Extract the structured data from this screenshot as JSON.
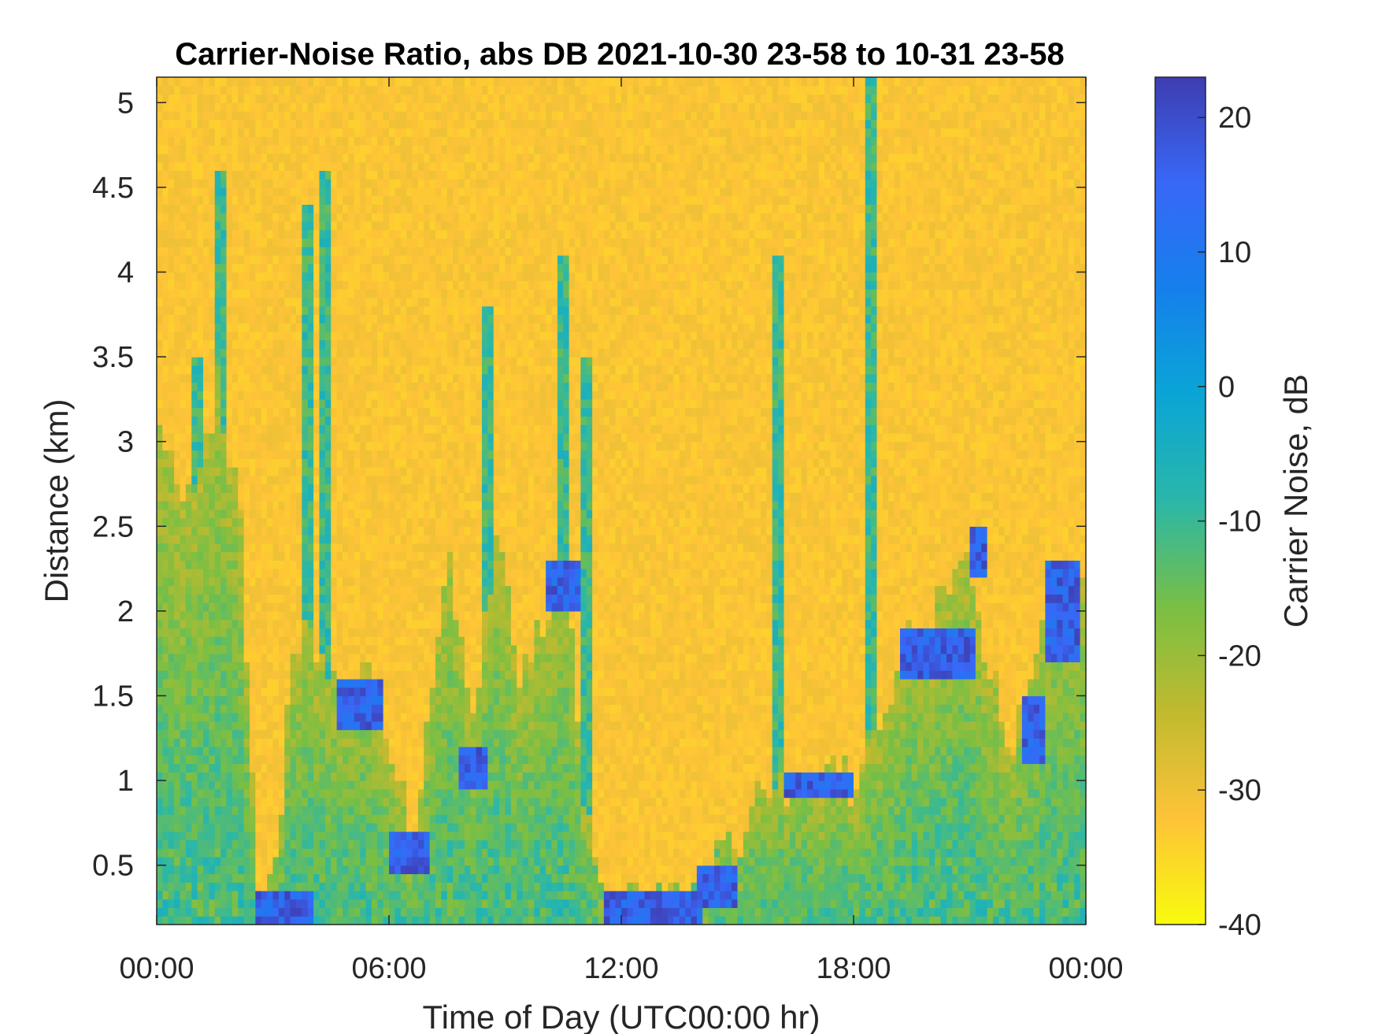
{
  "chart_data": {
    "type": "heatmap",
    "title": "Carrier-Noise Ratio, abs DB 2021-10-30 23-58 to 10-31 23-58",
    "xlabel": "Time of Day (UTC00:00 hr)",
    "ylabel": "Distance (km)",
    "colorbar_label": "Carrier Noise, dB",
    "xlim": [
      0,
      24
    ],
    "ylim": [
      0.15,
      5.15
    ],
    "clim": [
      -40,
      23
    ],
    "x_ticks": [
      0,
      6,
      12,
      18,
      24
    ],
    "x_tick_labels": [
      "00:00",
      "06:00",
      "12:00",
      "18:00",
      "00:00"
    ],
    "y_ticks": [
      0.5,
      1,
      1.5,
      2,
      2.5,
      3,
      3.5,
      4,
      4.5,
      5
    ],
    "y_tick_labels": [
      "0.5",
      "1",
      "1.5",
      "2",
      "2.5",
      "3",
      "3.5",
      "4",
      "4.5",
      "5"
    ],
    "colorbar_ticks": [
      -40,
      -30,
      -20,
      -10,
      0,
      10,
      20
    ],
    "colorbar_tick_labels": [
      "-40",
      "-30",
      "-20",
      "-10",
      "0",
      "10",
      "20"
    ],
    "colormap": [
      "#f9fb0e",
      "#fec338",
      "#c1ba2f",
      "#79bf44",
      "#2ab7a9",
      "#0aa5d6",
      "#1580ec",
      "#3868f7",
      "#3e3db0"
    ],
    "background_value_db": -32,
    "signal_layer_top_km": [
      [
        0.0,
        3.1
      ],
      [
        0.5,
        2.8
      ],
      [
        1.0,
        2.6
      ],
      [
        1.6,
        3.4
      ],
      [
        2.2,
        2.5
      ],
      [
        2.6,
        0.35
      ],
      [
        3.0,
        0.3
      ],
      [
        3.6,
        1.9
      ],
      [
        4.2,
        1.7
      ],
      [
        4.8,
        1.6
      ],
      [
        5.4,
        1.6
      ],
      [
        6.0,
        1.2
      ],
      [
        6.6,
        0.7
      ],
      [
        7.2,
        1.7
      ],
      [
        7.6,
        2.3
      ],
      [
        8.2,
        1.4
      ],
      [
        8.8,
        2.6
      ],
      [
        9.4,
        1.6
      ],
      [
        10.0,
        2.0
      ],
      [
        10.6,
        2.3
      ],
      [
        11.0,
        1.0
      ],
      [
        11.6,
        0.3
      ],
      [
        12.4,
        0.3
      ],
      [
        13.2,
        0.3
      ],
      [
        14.0,
        0.35
      ],
      [
        14.8,
        0.6
      ],
      [
        15.6,
        0.9
      ],
      [
        16.4,
        1.0
      ],
      [
        17.2,
        1.0
      ],
      [
        18.0,
        1.0
      ],
      [
        18.6,
        1.2
      ],
      [
        19.2,
        1.8
      ],
      [
        20.0,
        1.9
      ],
      [
        20.8,
        2.4
      ],
      [
        21.4,
        1.8
      ],
      [
        22.0,
        1.2
      ],
      [
        22.6,
        1.5
      ],
      [
        23.2,
        2.2
      ],
      [
        24.0,
        2.3
      ]
    ],
    "plumes": [
      {
        "x": 1.6,
        "top": 4.6
      },
      {
        "x": 3.9,
        "top": 4.4
      },
      {
        "x": 4.4,
        "top": 4.6
      },
      {
        "x": 8.5,
        "top": 3.8
      },
      {
        "x": 10.5,
        "top": 4.1
      },
      {
        "x": 11.1,
        "top": 3.5
      },
      {
        "x": 16.0,
        "top": 4.1
      },
      {
        "x": 18.4,
        "top": 5.15
      },
      {
        "x": 1.0,
        "top": 3.5
      }
    ],
    "strong_returns": [
      {
        "t0": 6.0,
        "t1": 7.0,
        "d0": 0.45,
        "d1": 0.7
      },
      {
        "t0": 11.5,
        "t1": 14.1,
        "d0": 0.15,
        "d1": 0.35
      },
      {
        "t0": 2.6,
        "t1": 4.0,
        "d0": 0.15,
        "d1": 0.35
      },
      {
        "t0": 7.8,
        "t1": 8.6,
        "d0": 0.95,
        "d1": 1.2
      },
      {
        "t0": 4.6,
        "t1": 5.8,
        "d0": 1.3,
        "d1": 1.6
      },
      {
        "t0": 10.0,
        "t1": 11.0,
        "d0": 2.0,
        "d1": 2.3
      },
      {
        "t0": 16.2,
        "t1": 18.0,
        "d0": 0.9,
        "d1": 1.05
      },
      {
        "t0": 19.2,
        "t1": 21.2,
        "d0": 1.6,
        "d1": 1.9
      },
      {
        "t0": 21.0,
        "t1": 21.5,
        "d0": 2.2,
        "d1": 2.5
      },
      {
        "t0": 22.3,
        "t1": 23.0,
        "d0": 1.1,
        "d1": 1.5
      },
      {
        "t0": 23.0,
        "t1": 23.8,
        "d0": 1.7,
        "d1": 2.3
      },
      {
        "t0": 14.0,
        "t1": 15.0,
        "d0": 0.25,
        "d1": 0.5
      }
    ]
  }
}
